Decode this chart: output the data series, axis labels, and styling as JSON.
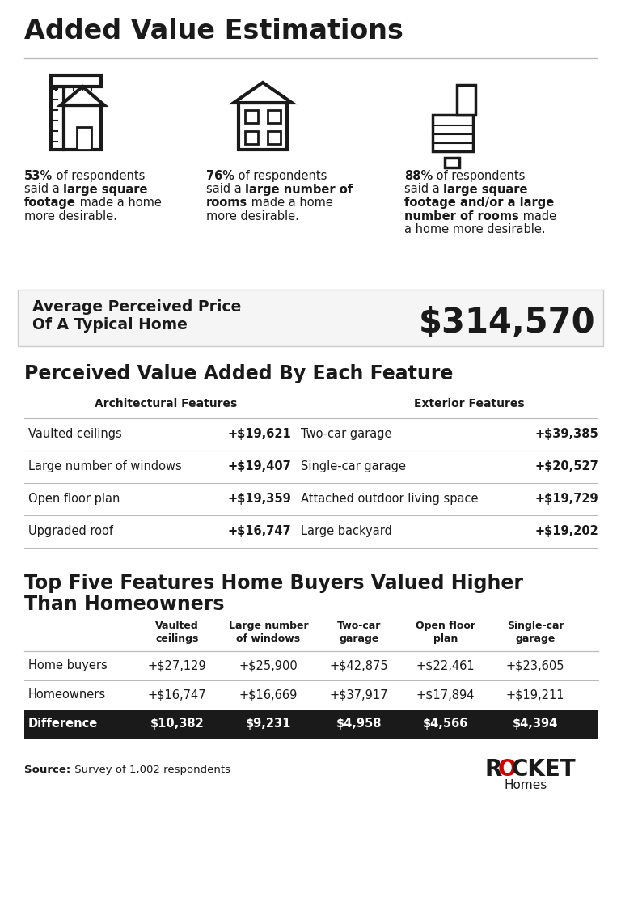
{
  "title": "Added Value Estimations",
  "bg_color": "#ffffff",
  "text_color": "#1a1a1a",
  "icon_col1_texts": [
    {
      "bold": true,
      "text": "53%"
    },
    {
      "bold": false,
      "text": " of respondents\nsaid a "
    },
    {
      "bold": true,
      "text": "large square\nfootage"
    },
    {
      "bold": false,
      "text": " made a home\nmore desirable."
    }
  ],
  "icon_col2_texts": [
    {
      "bold": true,
      "text": "76%"
    },
    {
      "bold": false,
      "text": " of respondents\nsaid a "
    },
    {
      "bold": true,
      "text": "large number of\nrooms"
    },
    {
      "bold": false,
      "text": " made a home\nmore desirable."
    }
  ],
  "icon_col3_texts": [
    {
      "bold": true,
      "text": "88%"
    },
    {
      "bold": false,
      "text": " of respondents\nsaid a "
    },
    {
      "bold": true,
      "text": "large square\nfootage and/or a large\nnumber of rooms"
    },
    {
      "bold": false,
      "text": " made\na home more desirable."
    }
  ],
  "avg_price_label_line1": "Average Perceived Price",
  "avg_price_label_line2": "Of A Typical Home",
  "avg_price_value": "$314,570",
  "section2_title": "Perceived Value Added By Each Feature",
  "arch_header": "Architectural Features",
  "ext_header": "Exterior Features",
  "arch_rows": [
    {
      "feature": "Vaulted ceilings",
      "value": "+$19,621"
    },
    {
      "feature": "Large number of windows",
      "value": "+$19,407"
    },
    {
      "feature": "Open floor plan",
      "value": "+$19,359"
    },
    {
      "feature": "Upgraded roof",
      "value": "+$16,747"
    }
  ],
  "ext_rows": [
    {
      "feature": "Two-car garage",
      "value": "+$39,385"
    },
    {
      "feature": "Single-car garage",
      "value": "+$20,527"
    },
    {
      "feature": "Attached outdoor living space",
      "value": "+$19,729"
    },
    {
      "feature": "Large backyard",
      "value": "+$19,202"
    }
  ],
  "section3_title_line1": "Top Five Features Home Buyers Valued Higher",
  "section3_title_line2": "Than Homeowners",
  "table_headers": [
    "Vaulted\nceilings",
    "Large number\nof windows",
    "Two-car\ngarage",
    "Open floor\nplan",
    "Single-car\ngarage"
  ],
  "row_labels": [
    "Home buyers",
    "Homeowners",
    "Difference"
  ],
  "table_data": [
    [
      "+$27,129",
      "+$25,900",
      "+$42,875",
      "+$22,461",
      "+$23,605"
    ],
    [
      "+$16,747",
      "+$16,669",
      "+$37,917",
      "+$17,894",
      "+$19,211"
    ],
    [
      "$10,382",
      "$9,231",
      "$4,958",
      "$4,566",
      "$4,394"
    ]
  ],
  "diff_row_bg": "#1a1a1a",
  "diff_row_fg": "#ffffff",
  "source_bold": "Source:",
  "source_regular": " Survey of 1,002 respondents",
  "line_color": "#bbbbbb",
  "rocket_red": "#cc0000"
}
